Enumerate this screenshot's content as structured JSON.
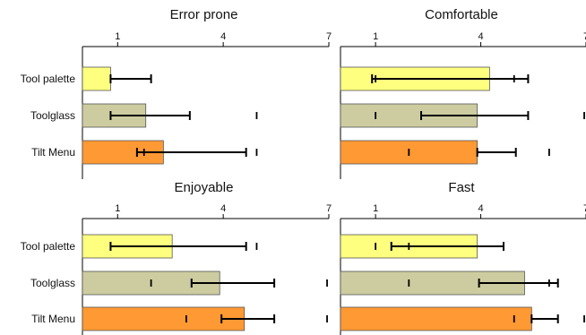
{
  "chart_data": [
    {
      "type": "bar",
      "orientation": "horizontal",
      "title": "Error prone",
      "categories": [
        "Tool palette",
        "Toolglass",
        "Tilt Menu"
      ],
      "xlim": [
        0,
        7
      ],
      "xticks": [
        1,
        4,
        7
      ],
      "values": [
        0.8,
        1.8,
        2.3
      ],
      "error_low": [
        0.8,
        0.8,
        1.55
      ],
      "error_high": [
        1.95,
        3.05,
        4.65
      ],
      "extra_ticks": [
        [],
        [
          4.95
        ],
        [
          1.75,
          4.95
        ]
      ]
    },
    {
      "type": "bar",
      "orientation": "horizontal",
      "title": "Comfortable",
      "categories": [
        "Tool palette",
        "Toolglass",
        "Tilt Menu"
      ],
      "xlim": [
        0,
        7
      ],
      "xticks": [
        1,
        4,
        7
      ],
      "values": [
        4.25,
        3.9,
        3.9
      ],
      "error_low": [
        0.9,
        2.3,
        3.9
      ],
      "error_high": [
        5.35,
        5.35,
        5.0
      ],
      "extra_ticks": [
        [
          1.0,
          4.95
        ],
        [
          1.0,
          6.95
        ],
        [
          1.95,
          5.95
        ]
      ]
    },
    {
      "type": "bar",
      "orientation": "horizontal",
      "title": "Enjoyable",
      "categories": [
        "Tool palette",
        "Toolglass",
        "Tilt Menu"
      ],
      "xlim": [
        0,
        7
      ],
      "xticks": [
        1,
        4,
        7
      ],
      "values": [
        2.55,
        3.9,
        4.6
      ],
      "error_low": [
        0.8,
        3.1,
        3.95
      ],
      "error_high": [
        4.65,
        5.45,
        5.45
      ],
      "extra_ticks": [
        [
          4.95
        ],
        [
          1.95,
          6.95
        ],
        [
          2.95,
          6.95
        ]
      ]
    },
    {
      "type": "bar",
      "orientation": "horizontal",
      "title": "Fast",
      "categories": [
        "Tool palette",
        "Toolglass",
        "Tilt Menu"
      ],
      "xlim": [
        0,
        7
      ],
      "xticks": [
        1,
        4,
        7
      ],
      "values": [
        3.9,
        5.25,
        5.45
      ],
      "error_low": [
        1.45,
        3.95,
        5.45
      ],
      "error_high": [
        4.65,
        6.2,
        6.2
      ],
      "extra_ticks": [
        [
          1.0,
          1.95
        ],
        [
          1.95,
          5.95
        ],
        [
          4.95,
          6.95
        ]
      ]
    }
  ],
  "colors": {
    "tool_palette": "#fefe7f",
    "toolglass": "#cccca0",
    "tilt_menu": "#ff9933",
    "axis": "#000000",
    "bar_stroke": "#555555"
  }
}
